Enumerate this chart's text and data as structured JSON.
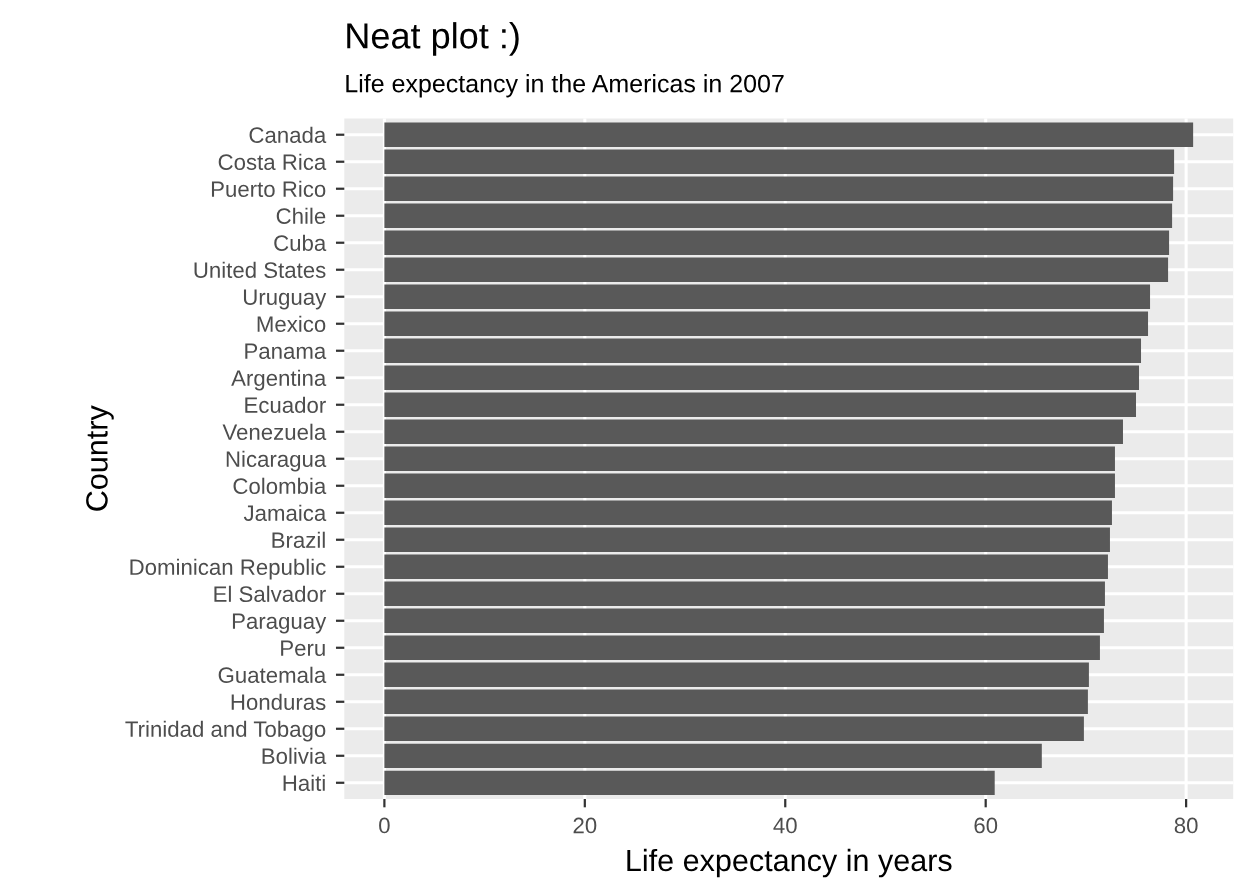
{
  "chart_data": {
    "type": "bar",
    "orientation": "horizontal",
    "title": "Neat plot :)",
    "subtitle": "Life expectancy in the Americas in 2007",
    "xlabel": "Life expectancy in years",
    "ylabel": "Country",
    "categories": [
      "Canada",
      "Costa Rica",
      "Puerto Rico",
      "Chile",
      "Cuba",
      "United States",
      "Uruguay",
      "Mexico",
      "Panama",
      "Argentina",
      "Ecuador",
      "Venezuela",
      "Nicaragua",
      "Colombia",
      "Jamaica",
      "Brazil",
      "Dominican Republic",
      "El Salvador",
      "Paraguay",
      "Peru",
      "Guatemala",
      "Honduras",
      "Trinidad and Tobago",
      "Bolivia",
      "Haiti"
    ],
    "values": [
      80.7,
      78.8,
      78.7,
      78.6,
      78.3,
      78.2,
      76.4,
      76.2,
      75.5,
      75.3,
      75.0,
      73.7,
      72.9,
      72.9,
      72.6,
      72.4,
      72.2,
      71.9,
      71.8,
      71.4,
      70.3,
      70.2,
      69.8,
      65.6,
      60.9
    ],
    "color": "#595959",
    "xlim": [
      -4,
      84.7
    ],
    "xticks": [
      0,
      20,
      40,
      60,
      80
    ],
    "grid": true
  }
}
